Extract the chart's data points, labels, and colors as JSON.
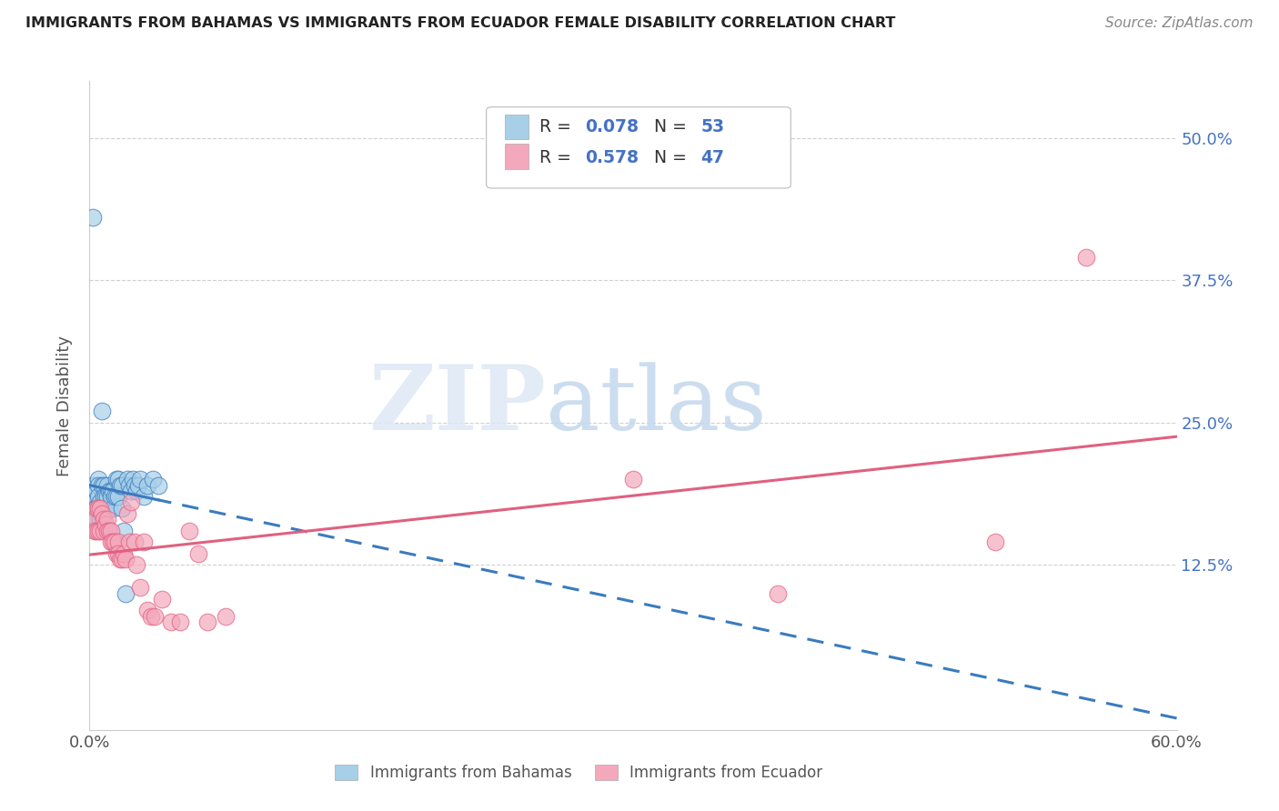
{
  "title": "IMMIGRANTS FROM BAHAMAS VS IMMIGRANTS FROM ECUADOR FEMALE DISABILITY CORRELATION CHART",
  "source": "Source: ZipAtlas.com",
  "ylabel": "Female Disability",
  "xlim": [
    0.0,
    0.6
  ],
  "ylim": [
    -0.02,
    0.55
  ],
  "ytick_positions": [
    0.125,
    0.25,
    0.375,
    0.5
  ],
  "ytick_labels": [
    "12.5%",
    "25.0%",
    "37.5%",
    "50.0%"
  ],
  "watermark_zip": "ZIP",
  "watermark_atlas": "atlas",
  "color_bahamas": "#a8cfe8",
  "color_ecuador": "#f4a8bc",
  "color_bahamas_line": "#3a7bbf",
  "color_ecuador_line": "#e06080",
  "color_text_blue": "#4472c4",
  "color_rn_label": "#333333",
  "background_color": "#ffffff",
  "grid_color": "#d0d0d0",
  "bahamas_x": [
    0.002,
    0.002,
    0.002,
    0.003,
    0.003,
    0.003,
    0.004,
    0.004,
    0.004,
    0.005,
    0.005,
    0.005,
    0.005,
    0.006,
    0.006,
    0.007,
    0.007,
    0.008,
    0.008,
    0.008,
    0.009,
    0.009,
    0.01,
    0.01,
    0.01,
    0.011,
    0.011,
    0.012,
    0.012,
    0.013,
    0.013,
    0.014,
    0.015,
    0.015,
    0.016,
    0.016,
    0.017,
    0.018,
    0.018,
    0.019,
    0.02,
    0.021,
    0.022,
    0.023,
    0.024,
    0.025,
    0.026,
    0.027,
    0.028,
    0.03,
    0.032,
    0.035,
    0.038
  ],
  "bahamas_y": [
    0.43,
    0.195,
    0.17,
    0.18,
    0.175,
    0.165,
    0.19,
    0.175,
    0.165,
    0.2,
    0.195,
    0.185,
    0.175,
    0.18,
    0.165,
    0.26,
    0.195,
    0.195,
    0.185,
    0.175,
    0.185,
    0.175,
    0.195,
    0.185,
    0.175,
    0.19,
    0.175,
    0.19,
    0.185,
    0.19,
    0.175,
    0.185,
    0.2,
    0.185,
    0.2,
    0.185,
    0.195,
    0.195,
    0.175,
    0.155,
    0.1,
    0.2,
    0.195,
    0.19,
    0.2,
    0.195,
    0.19,
    0.195,
    0.2,
    0.185,
    0.195,
    0.2,
    0.195
  ],
  "ecuador_x": [
    0.002,
    0.003,
    0.004,
    0.004,
    0.005,
    0.005,
    0.006,
    0.006,
    0.007,
    0.008,
    0.008,
    0.009,
    0.01,
    0.01,
    0.011,
    0.012,
    0.012,
    0.013,
    0.014,
    0.015,
    0.016,
    0.016,
    0.017,
    0.018,
    0.019,
    0.02,
    0.021,
    0.022,
    0.023,
    0.025,
    0.026,
    0.028,
    0.03,
    0.032,
    0.034,
    0.036,
    0.04,
    0.045,
    0.05,
    0.055,
    0.06,
    0.065,
    0.075,
    0.3,
    0.38,
    0.5,
    0.55
  ],
  "ecuador_y": [
    0.165,
    0.155,
    0.175,
    0.155,
    0.175,
    0.155,
    0.175,
    0.155,
    0.17,
    0.165,
    0.155,
    0.16,
    0.165,
    0.155,
    0.155,
    0.155,
    0.145,
    0.145,
    0.145,
    0.135,
    0.145,
    0.135,
    0.13,
    0.13,
    0.135,
    0.13,
    0.17,
    0.145,
    0.18,
    0.145,
    0.125,
    0.105,
    0.145,
    0.085,
    0.08,
    0.08,
    0.095,
    0.075,
    0.075,
    0.155,
    0.135,
    0.075,
    0.08,
    0.2,
    0.1,
    0.145,
    0.395
  ]
}
